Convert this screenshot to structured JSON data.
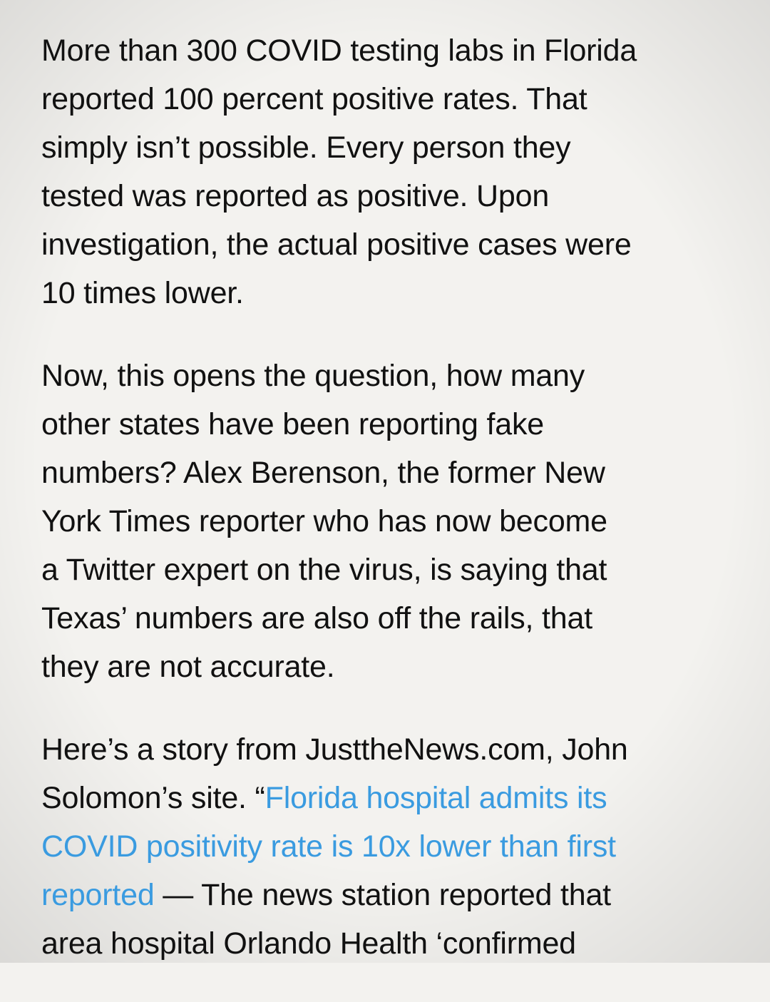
{
  "article": {
    "paragraph_1": [
      "More than 300 COVID testing labs in Florida",
      "reported 100 percent positive rates. That",
      "simply isn’t possible. Every person they",
      "tested was reported as positive. Upon",
      "investigation, the actual positive cases were",
      "10 times lower."
    ],
    "paragraph_2": [
      "Now, this opens the question, how many",
      "other states have been reporting fake",
      "numbers? Alex Berenson, the former New",
      "York Times reporter who has now become",
      "a Twitter expert on the virus, is saying that",
      "Texas’ numbers are also off the rails, that",
      "they are not accurate."
    ],
    "paragraph_3": {
      "line_1": "Here’s a story from JusttheNews.com, John",
      "line_2_text": "Solomon’s site. “",
      "link_line_1": "Florida hospital admits its",
      "link_line_2": "COVID positivity rate is 10x lower than first",
      "link_line_3": "reported",
      "line_4_text": " — The news station reported that",
      "line_5": "area hospital Orlando Health ‘confirmed"
    }
  },
  "colors": {
    "background": "#f3f2ef",
    "text": "#111111",
    "link": "#3a9be0"
  }
}
